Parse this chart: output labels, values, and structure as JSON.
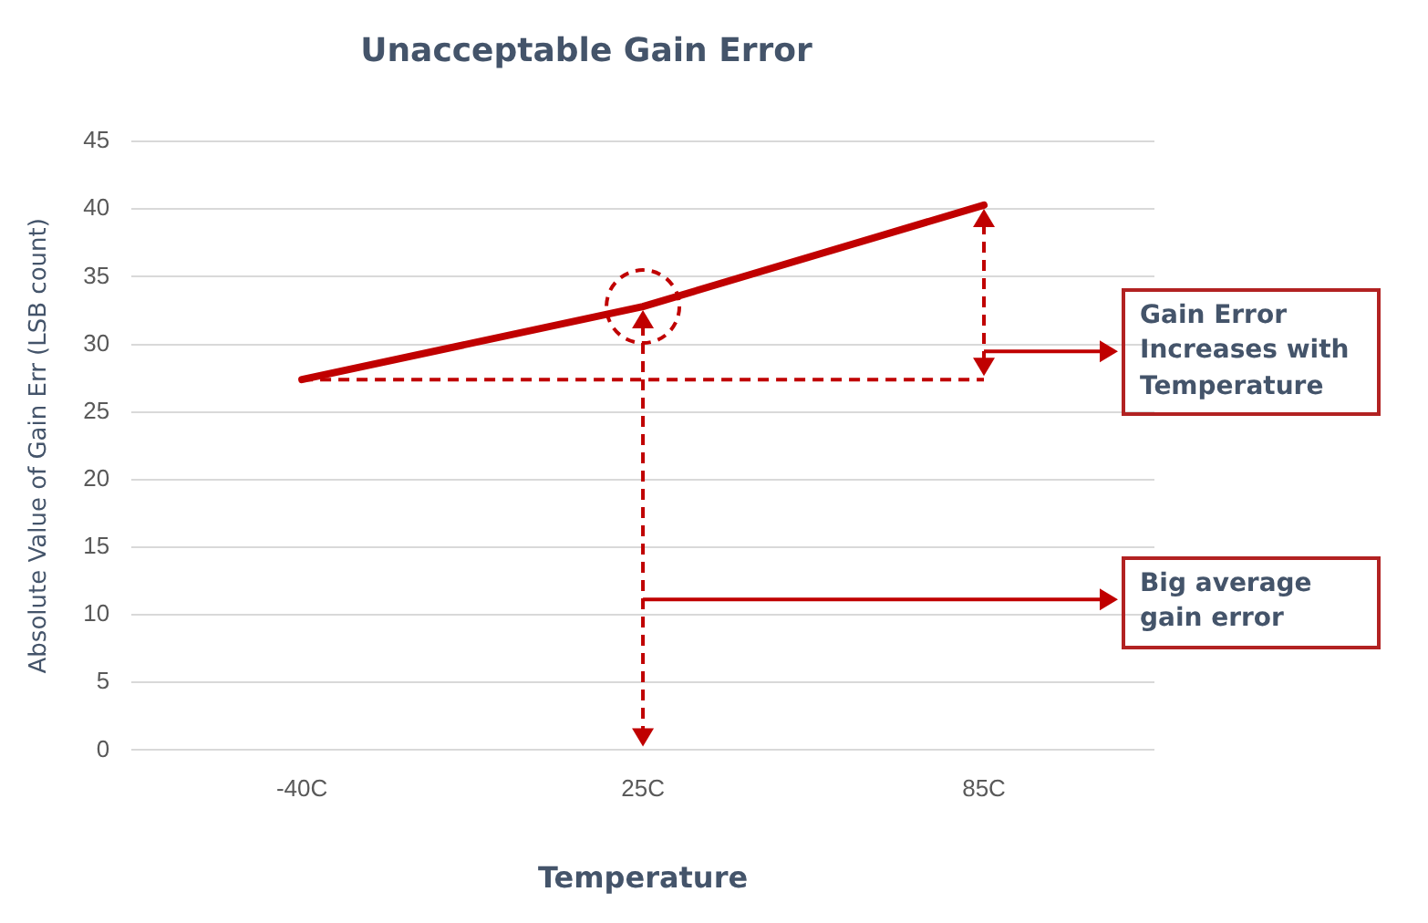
{
  "chart_data": {
    "type": "line",
    "title": "Unacceptable Gain Error",
    "xlabel": "Temperature",
    "ylabel": "Absolute Value of Gain Err (LSB count)",
    "categories": [
      "-40C",
      "25C",
      "85C"
    ],
    "series": [
      {
        "color": "#c00000",
        "values": [
          27.4,
          32.8,
          40.3
        ]
      }
    ],
    "ylim": [
      0,
      45
    ],
    "yticks": [
      0,
      5,
      10,
      15,
      20,
      25,
      30,
      35,
      40,
      45
    ],
    "grid": "y",
    "legend": false,
    "marker": "none",
    "line_style": "solid",
    "annotations": [
      "Gain Error Increases with Temperature",
      "Big average gain error"
    ]
  }
}
